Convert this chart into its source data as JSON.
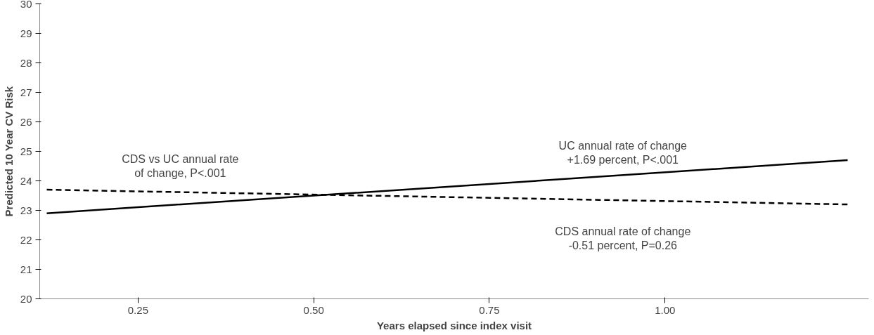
{
  "chart_data": {
    "type": "line",
    "xlabel": "Years elapsed since index visit",
    "ylabel": "Predicted 10 Year CV Risk",
    "xlim": [
      0.11,
      1.29
    ],
    "xticks": [
      {
        "value": 0.25,
        "label": "0.25"
      },
      {
        "value": 0.5,
        "label": "0.50"
      },
      {
        "value": 0.75,
        "label": "0.75"
      },
      {
        "value": 1.0,
        "label": "1.00"
      }
    ],
    "ylim": [
      20,
      30
    ],
    "yticks": [
      20,
      21,
      22,
      23,
      24,
      25,
      26,
      27,
      28,
      29,
      30
    ],
    "grid": false,
    "x": [
      0.12,
      0.69,
      1.26
    ],
    "series": [
      {
        "color": "#000000",
        "line_style": "solid",
        "values": [
          22.9,
          23.8,
          24.7
        ]
      },
      {
        "color": "#000000",
        "line_style": "dashed",
        "values": [
          23.7,
          23.45,
          23.2
        ]
      }
    ],
    "annotations": [
      "CDS vs UC annual rate\nof change, P<.001",
      "UC annual rate of change\n+1.69 percent, P<.001",
      "CDS annual rate of change\n-0.51 percent, P=0.26"
    ]
  }
}
